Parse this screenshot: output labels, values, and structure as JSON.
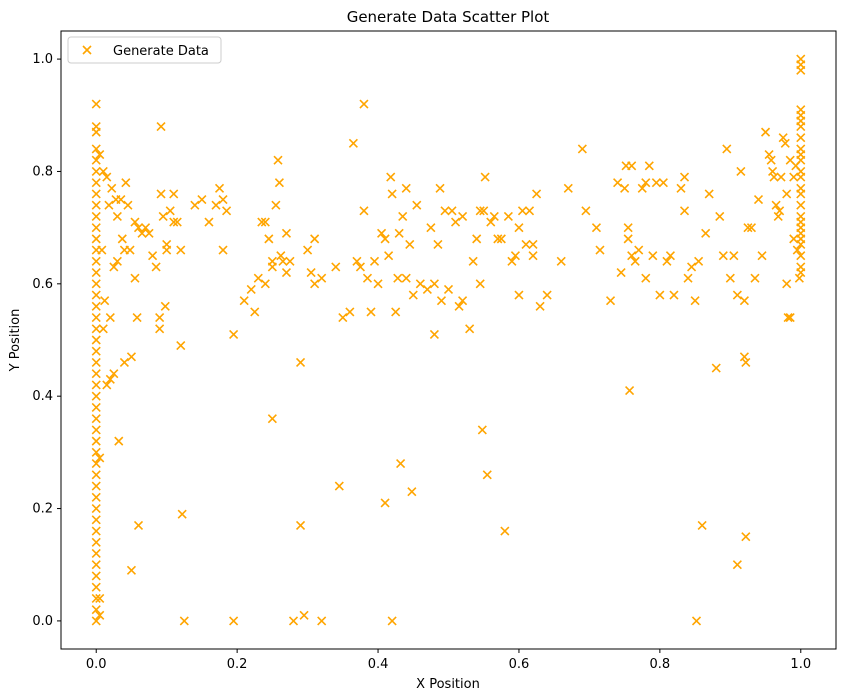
{
  "chart_data": {
    "type": "scatter",
    "title": "Generate Data Scatter Plot",
    "xlabel": "X Position",
    "ylabel": "Y Position",
    "xlim": [
      -0.05,
      1.05
    ],
    "ylim": [
      -0.05,
      1.05
    ],
    "xticks": [
      "0.0",
      "0.2",
      "0.4",
      "0.6",
      "0.8",
      "1.0"
    ],
    "yticks": [
      "0.0",
      "0.2",
      "0.4",
      "0.6",
      "0.8",
      "1.0"
    ],
    "grid": false,
    "legend_position": "top-left",
    "marker": "x",
    "color": "#FFA500",
    "series": [
      {
        "name": "Generate Data",
        "points": [
          [
            0.0,
            0.92
          ],
          [
            0.0,
            0.88
          ],
          [
            0.0,
            0.87
          ],
          [
            0.0,
            0.84
          ],
          [
            0.0,
            0.82
          ],
          [
            0.0,
            0.8
          ],
          [
            0.0,
            0.78
          ],
          [
            0.0,
            0.76
          ],
          [
            0.0,
            0.74
          ],
          [
            0.0,
            0.72
          ],
          [
            0.0,
            0.7
          ],
          [
            0.0,
            0.68
          ],
          [
            0.0,
            0.66
          ],
          [
            0.0,
            0.64
          ],
          [
            0.0,
            0.62
          ],
          [
            0.0,
            0.6
          ],
          [
            0.0,
            0.58
          ],
          [
            0.0,
            0.56
          ],
          [
            0.0,
            0.54
          ],
          [
            0.0,
            0.52
          ],
          [
            0.0,
            0.5
          ],
          [
            0.0,
            0.48
          ],
          [
            0.0,
            0.46
          ],
          [
            0.0,
            0.44
          ],
          [
            0.0,
            0.42
          ],
          [
            0.0,
            0.4
          ],
          [
            0.0,
            0.38
          ],
          [
            0.0,
            0.36
          ],
          [
            0.0,
            0.34
          ],
          [
            0.0,
            0.32
          ],
          [
            0.0,
            0.3
          ],
          [
            0.0,
            0.28
          ],
          [
            0.0,
            0.26
          ],
          [
            0.0,
            0.24
          ],
          [
            0.0,
            0.22
          ],
          [
            0.0,
            0.2
          ],
          [
            0.0,
            0.18
          ],
          [
            0.0,
            0.16
          ],
          [
            0.0,
            0.14
          ],
          [
            0.0,
            0.12
          ],
          [
            0.0,
            0.1
          ],
          [
            0.0,
            0.08
          ],
          [
            0.0,
            0.06
          ],
          [
            0.0,
            0.04
          ],
          [
            0.0,
            0.02
          ],
          [
            0.0,
            0.0
          ],
          [
            0.005,
            0.01
          ],
          [
            0.005,
            0.04
          ],
          [
            0.005,
            0.83
          ],
          [
            0.005,
            0.29
          ],
          [
            0.008,
            0.66
          ],
          [
            0.01,
            0.8
          ],
          [
            0.01,
            0.52
          ],
          [
            0.012,
            0.57
          ],
          [
            0.015,
            0.42
          ],
          [
            0.015,
            0.79
          ],
          [
            0.018,
            0.74
          ],
          [
            0.02,
            0.54
          ],
          [
            0.02,
            0.43
          ],
          [
            0.022,
            0.77
          ],
          [
            0.025,
            0.63
          ],
          [
            0.025,
            0.44
          ],
          [
            0.028,
            0.75
          ],
          [
            0.03,
            0.72
          ],
          [
            0.03,
            0.64
          ],
          [
            0.032,
            0.32
          ],
          [
            0.035,
            0.75
          ],
          [
            0.037,
            0.68
          ],
          [
            0.04,
            0.66
          ],
          [
            0.04,
            0.46
          ],
          [
            0.042,
            0.78
          ],
          [
            0.045,
            0.74
          ],
          [
            0.048,
            0.66
          ],
          [
            0.05,
            0.09
          ],
          [
            0.05,
            0.47
          ],
          [
            0.055,
            0.71
          ],
          [
            0.055,
            0.61
          ],
          [
            0.058,
            0.54
          ],
          [
            0.06,
            0.17
          ],
          [
            0.06,
            0.7
          ],
          [
            0.065,
            0.69
          ],
          [
            0.07,
            0.7
          ],
          [
            0.075,
            0.69
          ],
          [
            0.08,
            0.65
          ],
          [
            0.085,
            0.63
          ],
          [
            0.09,
            0.54
          ],
          [
            0.09,
            0.52
          ],
          [
            0.092,
            0.76
          ],
          [
            0.092,
            0.88
          ],
          [
            0.095,
            0.72
          ],
          [
            0.098,
            0.56
          ],
          [
            0.1,
            0.66
          ],
          [
            0.1,
            0.67
          ],
          [
            0.105,
            0.73
          ],
          [
            0.11,
            0.71
          ],
          [
            0.11,
            0.76
          ],
          [
            0.115,
            0.71
          ],
          [
            0.12,
            0.49
          ],
          [
            0.12,
            0.66
          ],
          [
            0.122,
            0.19
          ],
          [
            0.125,
            0.0
          ],
          [
            0.14,
            0.74
          ],
          [
            0.15,
            0.75
          ],
          [
            0.16,
            0.71
          ],
          [
            0.17,
            0.74
          ],
          [
            0.175,
            0.77
          ],
          [
            0.18,
            0.75
          ],
          [
            0.18,
            0.66
          ],
          [
            0.185,
            0.73
          ],
          [
            0.195,
            0.51
          ],
          [
            0.195,
            0.0
          ],
          [
            0.21,
            0.57
          ],
          [
            0.22,
            0.59
          ],
          [
            0.225,
            0.55
          ],
          [
            0.23,
            0.61
          ],
          [
            0.235,
            0.71
          ],
          [
            0.24,
            0.6
          ],
          [
            0.24,
            0.71
          ],
          [
            0.245,
            0.68
          ],
          [
            0.25,
            0.63
          ],
          [
            0.25,
            0.64
          ],
          [
            0.25,
            0.36
          ],
          [
            0.255,
            0.74
          ],
          [
            0.258,
            0.82
          ],
          [
            0.26,
            0.78
          ],
          [
            0.262,
            0.65
          ],
          [
            0.265,
            0.64
          ],
          [
            0.27,
            0.69
          ],
          [
            0.27,
            0.62
          ],
          [
            0.275,
            0.64
          ],
          [
            0.28,
            0.0
          ],
          [
            0.29,
            0.46
          ],
          [
            0.29,
            0.17
          ],
          [
            0.295,
            0.01
          ],
          [
            0.3,
            0.66
          ],
          [
            0.305,
            0.62
          ],
          [
            0.31,
            0.6
          ],
          [
            0.31,
            0.68
          ],
          [
            0.32,
            0.61
          ],
          [
            0.32,
            0.0
          ],
          [
            0.34,
            0.63
          ],
          [
            0.345,
            0.24
          ],
          [
            0.35,
            0.54
          ],
          [
            0.36,
            0.55
          ],
          [
            0.365,
            0.85
          ],
          [
            0.37,
            0.64
          ],
          [
            0.375,
            0.63
          ],
          [
            0.38,
            0.92
          ],
          [
            0.38,
            0.73
          ],
          [
            0.385,
            0.61
          ],
          [
            0.39,
            0.55
          ],
          [
            0.395,
            0.64
          ],
          [
            0.4,
            0.6
          ],
          [
            0.405,
            0.69
          ],
          [
            0.41,
            0.68
          ],
          [
            0.41,
            0.21
          ],
          [
            0.415,
            0.65
          ],
          [
            0.418,
            0.79
          ],
          [
            0.42,
            0.76
          ],
          [
            0.42,
            0.0
          ],
          [
            0.425,
            0.55
          ],
          [
            0.428,
            0.61
          ],
          [
            0.43,
            0.69
          ],
          [
            0.432,
            0.28
          ],
          [
            0.435,
            0.72
          ],
          [
            0.44,
            0.61
          ],
          [
            0.44,
            0.77
          ],
          [
            0.445,
            0.67
          ],
          [
            0.448,
            0.23
          ],
          [
            0.45,
            0.58
          ],
          [
            0.455,
            0.74
          ],
          [
            0.46,
            0.6
          ],
          [
            0.47,
            0.59
          ],
          [
            0.475,
            0.7
          ],
          [
            0.48,
            0.51
          ],
          [
            0.48,
            0.6
          ],
          [
            0.485,
            0.67
          ],
          [
            0.488,
            0.77
          ],
          [
            0.49,
            0.57
          ],
          [
            0.495,
            0.73
          ],
          [
            0.5,
            0.59
          ],
          [
            0.505,
            0.73
          ],
          [
            0.51,
            0.71
          ],
          [
            0.515,
            0.56
          ],
          [
            0.52,
            0.57
          ],
          [
            0.52,
            0.72
          ],
          [
            0.53,
            0.52
          ],
          [
            0.535,
            0.64
          ],
          [
            0.54,
            0.68
          ],
          [
            0.545,
            0.73
          ],
          [
            0.545,
            0.6
          ],
          [
            0.548,
            0.34
          ],
          [
            0.55,
            0.73
          ],
          [
            0.552,
            0.79
          ],
          [
            0.555,
            0.26
          ],
          [
            0.56,
            0.71
          ],
          [
            0.565,
            0.72
          ],
          [
            0.57,
            0.68
          ],
          [
            0.575,
            0.68
          ],
          [
            0.58,
            0.16
          ],
          [
            0.585,
            0.72
          ],
          [
            0.59,
            0.64
          ],
          [
            0.595,
            0.65
          ],
          [
            0.6,
            0.7
          ],
          [
            0.6,
            0.58
          ],
          [
            0.605,
            0.73
          ],
          [
            0.61,
            0.67
          ],
          [
            0.615,
            0.73
          ],
          [
            0.62,
            0.67
          ],
          [
            0.62,
            0.65
          ],
          [
            0.625,
            0.76
          ],
          [
            0.63,
            0.56
          ],
          [
            0.64,
            0.58
          ],
          [
            0.66,
            0.64
          ],
          [
            0.67,
            0.77
          ],
          [
            0.69,
            0.84
          ],
          [
            0.695,
            0.73
          ],
          [
            0.71,
            0.7
          ],
          [
            0.715,
            0.66
          ],
          [
            0.73,
            0.57
          ],
          [
            0.74,
            0.78
          ],
          [
            0.745,
            0.62
          ],
          [
            0.75,
            0.77
          ],
          [
            0.752,
            0.81
          ],
          [
            0.755,
            0.7
          ],
          [
            0.755,
            0.68
          ],
          [
            0.757,
            0.41
          ],
          [
            0.76,
            0.81
          ],
          [
            0.76,
            0.65
          ],
          [
            0.765,
            0.64
          ],
          [
            0.77,
            0.66
          ],
          [
            0.775,
            0.77
          ],
          [
            0.78,
            0.61
          ],
          [
            0.78,
            0.78
          ],
          [
            0.785,
            0.81
          ],
          [
            0.79,
            0.65
          ],
          [
            0.795,
            0.78
          ],
          [
            0.8,
            0.58
          ],
          [
            0.805,
            0.78
          ],
          [
            0.81,
            0.64
          ],
          [
            0.815,
            0.65
          ],
          [
            0.82,
            0.58
          ],
          [
            0.83,
            0.77
          ],
          [
            0.835,
            0.73
          ],
          [
            0.835,
            0.79
          ],
          [
            0.84,
            0.61
          ],
          [
            0.845,
            0.63
          ],
          [
            0.85,
            0.57
          ],
          [
            0.852,
            0.0
          ],
          [
            0.855,
            0.64
          ],
          [
            0.86,
            0.17
          ],
          [
            0.865,
            0.69
          ],
          [
            0.87,
            0.76
          ],
          [
            0.88,
            0.45
          ],
          [
            0.885,
            0.72
          ],
          [
            0.89,
            0.65
          ],
          [
            0.895,
            0.84
          ],
          [
            0.9,
            0.61
          ],
          [
            0.905,
            0.65
          ],
          [
            0.91,
            0.58
          ],
          [
            0.91,
            0.1
          ],
          [
            0.915,
            0.8
          ],
          [
            0.92,
            0.57
          ],
          [
            0.92,
            0.47
          ],
          [
            0.922,
            0.46
          ],
          [
            0.922,
            0.15
          ],
          [
            0.925,
            0.7
          ],
          [
            0.93,
            0.7
          ],
          [
            0.935,
            0.61
          ],
          [
            0.94,
            0.75
          ],
          [
            0.945,
            0.65
          ],
          [
            0.95,
            0.87
          ],
          [
            0.955,
            0.83
          ],
          [
            0.958,
            0.82
          ],
          [
            0.96,
            0.8
          ],
          [
            0.962,
            0.79
          ],
          [
            0.965,
            0.74
          ],
          [
            0.968,
            0.72
          ],
          [
            0.97,
            0.73
          ],
          [
            0.972,
            0.79
          ],
          [
            0.975,
            0.86
          ],
          [
            0.978,
            0.85
          ],
          [
            0.98,
            0.76
          ],
          [
            0.982,
            0.54
          ],
          [
            0.985,
            0.82
          ],
          [
            0.99,
            0.79
          ],
          [
            0.993,
            0.81
          ],
          [
            1.0,
            1.0
          ],
          [
            1.0,
            0.99
          ],
          [
            1.0,
            0.98
          ],
          [
            1.0,
            0.91
          ],
          [
            1.0,
            0.9
          ],
          [
            1.0,
            0.89
          ],
          [
            1.0,
            0.88
          ],
          [
            1.0,
            0.86
          ],
          [
            1.0,
            0.84
          ],
          [
            1.0,
            0.83
          ],
          [
            1.0,
            0.82
          ],
          [
            1.0,
            0.8
          ],
          [
            1.0,
            0.79
          ],
          [
            1.0,
            0.77
          ],
          [
            1.0,
            0.76
          ],
          [
            1.0,
            0.74
          ],
          [
            1.0,
            0.72
          ],
          [
            1.0,
            0.71
          ],
          [
            1.0,
            0.7
          ],
          [
            1.0,
            0.69
          ],
          [
            1.0,
            0.68
          ],
          [
            1.0,
            0.67
          ],
          [
            1.0,
            0.65
          ],
          [
            1.0,
            0.63
          ],
          [
            1.0,
            0.62
          ],
          [
            0.998,
            0.61
          ],
          [
            0.995,
            0.66
          ],
          [
            0.99,
            0.68
          ],
          [
            0.985,
            0.54
          ],
          [
            0.98,
            0.6
          ]
        ]
      }
    ]
  }
}
